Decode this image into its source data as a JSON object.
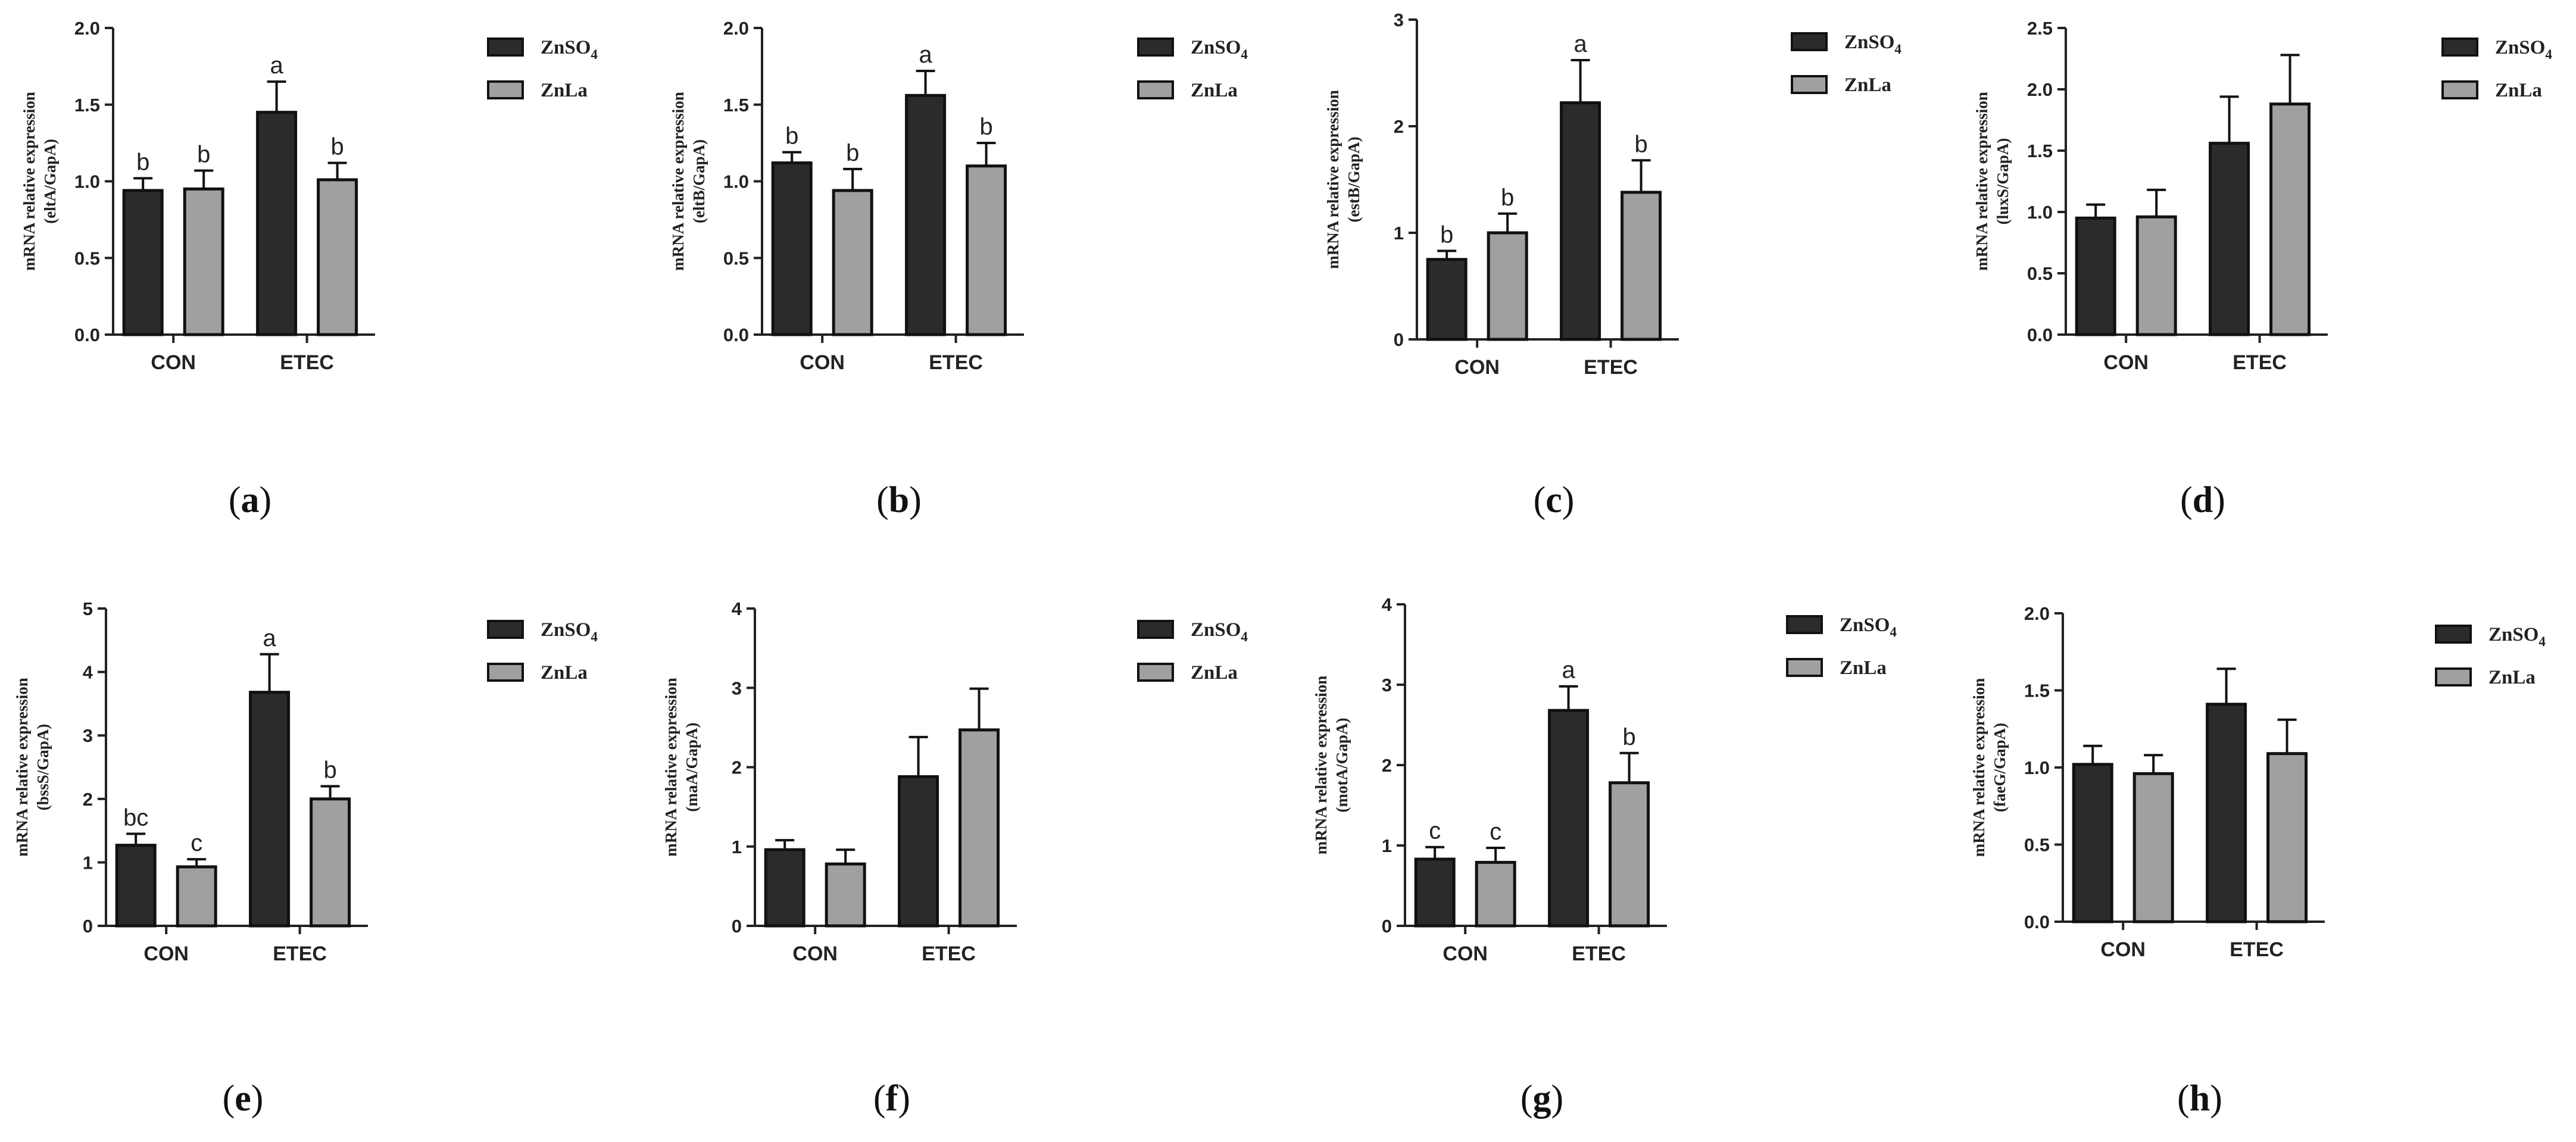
{
  "legend": {
    "znso4_prefix": "ZnSO",
    "znso4_subscript": "4",
    "znla": "ZnLa"
  },
  "colors": {
    "znso4": "#2b2b2b",
    "znla": "#a0a0a0",
    "axis": "#222222"
  },
  "ylabel_line1": "mRNA relative expression",
  "chart_data": [
    {
      "type": "bar",
      "panel": "a",
      "title": "",
      "xlabel": "",
      "ylabel": "(eltA/GapA)",
      "categories": [
        "CON",
        "ETEC"
      ],
      "ylim": [
        0,
        2.0
      ],
      "yticks": [
        "0.0",
        "0.5",
        "1.0",
        "1.5",
        "2.0"
      ],
      "series": [
        {
          "name": "ZnSO4",
          "values": [
            0.94,
            1.45
          ],
          "errors": [
            0.08,
            0.2
          ],
          "letters": [
            "b",
            "a"
          ]
        },
        {
          "name": "ZnLa",
          "values": [
            0.95,
            1.01
          ],
          "errors": [
            0.12,
            0.11
          ],
          "letters": [
            "b",
            "b"
          ]
        }
      ]
    },
    {
      "type": "bar",
      "panel": "b",
      "title": "",
      "xlabel": "",
      "ylabel": "(eltB/GapA)",
      "categories": [
        "CON",
        "ETEC"
      ],
      "ylim": [
        0,
        2.0
      ],
      "yticks": [
        "0.0",
        "0.5",
        "1.0",
        "1.5",
        "2.0"
      ],
      "series": [
        {
          "name": "ZnSO4",
          "values": [
            1.12,
            1.56
          ],
          "errors": [
            0.07,
            0.16
          ],
          "letters": [
            "b",
            "a"
          ]
        },
        {
          "name": "ZnLa",
          "values": [
            0.94,
            1.1
          ],
          "errors": [
            0.14,
            0.15
          ],
          "letters": [
            "b",
            "b"
          ]
        }
      ]
    },
    {
      "type": "bar",
      "panel": "c",
      "title": "",
      "xlabel": "",
      "ylabel": "(estB/GapA)",
      "categories": [
        "CON",
        "ETEC"
      ],
      "ylim": [
        0,
        3
      ],
      "yticks": [
        "0",
        "1",
        "2",
        "3"
      ],
      "series": [
        {
          "name": "ZnSO4",
          "values": [
            0.75,
            2.22
          ],
          "errors": [
            0.08,
            0.4
          ],
          "letters": [
            "b",
            "a"
          ]
        },
        {
          "name": "ZnLa",
          "values": [
            1.0,
            1.38
          ],
          "errors": [
            0.18,
            0.3
          ],
          "letters": [
            "b",
            "b"
          ]
        }
      ]
    },
    {
      "type": "bar",
      "panel": "d",
      "title": "",
      "xlabel": "",
      "ylabel": "(luxS/GapA)",
      "categories": [
        "CON",
        "ETEC"
      ],
      "ylim": [
        0,
        2.5
      ],
      "yticks": [
        "0.0",
        "0.5",
        "1.0",
        "1.5",
        "2.0",
        "2.5"
      ],
      "series": [
        {
          "name": "ZnSO4",
          "values": [
            0.95,
            1.56
          ],
          "errors": [
            0.11,
            0.38
          ],
          "letters": [
            "",
            ""
          ]
        },
        {
          "name": "ZnLa",
          "values": [
            0.96,
            1.88
          ],
          "errors": [
            0.22,
            0.4
          ],
          "letters": [
            "",
            ""
          ]
        }
      ]
    },
    {
      "type": "bar",
      "panel": "e",
      "title": "",
      "xlabel": "",
      "ylabel": "(bssS/GapA)",
      "categories": [
        "CON",
        "ETEC"
      ],
      "ylim": [
        0,
        5
      ],
      "yticks": [
        "0",
        "1",
        "2",
        "3",
        "4",
        "5"
      ],
      "series": [
        {
          "name": "ZnSO4",
          "values": [
            1.27,
            3.68
          ],
          "errors": [
            0.18,
            0.6
          ],
          "letters": [
            "bc",
            "a"
          ]
        },
        {
          "name": "ZnLa",
          "values": [
            0.93,
            2.0
          ],
          "errors": [
            0.12,
            0.2
          ],
          "letters": [
            "c",
            "b"
          ]
        }
      ]
    },
    {
      "type": "bar",
      "panel": "f",
      "title": "",
      "xlabel": "",
      "ylabel": "(maA/GapA)",
      "categories": [
        "CON",
        "ETEC"
      ],
      "ylim": [
        0,
        4
      ],
      "yticks": [
        "0",
        "1",
        "2",
        "3",
        "4"
      ],
      "series": [
        {
          "name": "ZnSO4",
          "values": [
            0.96,
            1.88
          ],
          "errors": [
            0.12,
            0.5
          ],
          "letters": [
            "",
            ""
          ]
        },
        {
          "name": "ZnLa",
          "values": [
            0.78,
            2.47
          ],
          "errors": [
            0.18,
            0.52
          ],
          "letters": [
            "",
            ""
          ]
        }
      ]
    },
    {
      "type": "bar",
      "panel": "g",
      "title": "",
      "xlabel": "",
      "ylabel": "(motA/GapA)",
      "categories": [
        "CON",
        "ETEC"
      ],
      "ylim": [
        0,
        4
      ],
      "yticks": [
        "0",
        "1",
        "2",
        "3",
        "4"
      ],
      "series": [
        {
          "name": "ZnSO4",
          "values": [
            0.83,
            2.68
          ],
          "errors": [
            0.15,
            0.3
          ],
          "letters": [
            "c",
            "a"
          ]
        },
        {
          "name": "ZnLa",
          "values": [
            0.79,
            1.78
          ],
          "errors": [
            0.18,
            0.37
          ],
          "letters": [
            "c",
            "b"
          ]
        }
      ]
    },
    {
      "type": "bar",
      "panel": "h",
      "title": "",
      "xlabel": "",
      "ylabel": "(faeG/GapA)",
      "categories": [
        "CON",
        "ETEC"
      ],
      "ylim": [
        0,
        2.0
      ],
      "yticks": [
        "0.0",
        "0.5",
        "1.0",
        "1.5",
        "2.0"
      ],
      "series": [
        {
          "name": "ZnSO4",
          "values": [
            1.02,
            1.41
          ],
          "errors": [
            0.12,
            0.23
          ],
          "letters": [
            "",
            ""
          ]
        },
        {
          "name": "ZnLa",
          "values": [
            0.96,
            1.09
          ],
          "errors": [
            0.12,
            0.22
          ],
          "letters": [
            "",
            ""
          ]
        }
      ]
    }
  ]
}
